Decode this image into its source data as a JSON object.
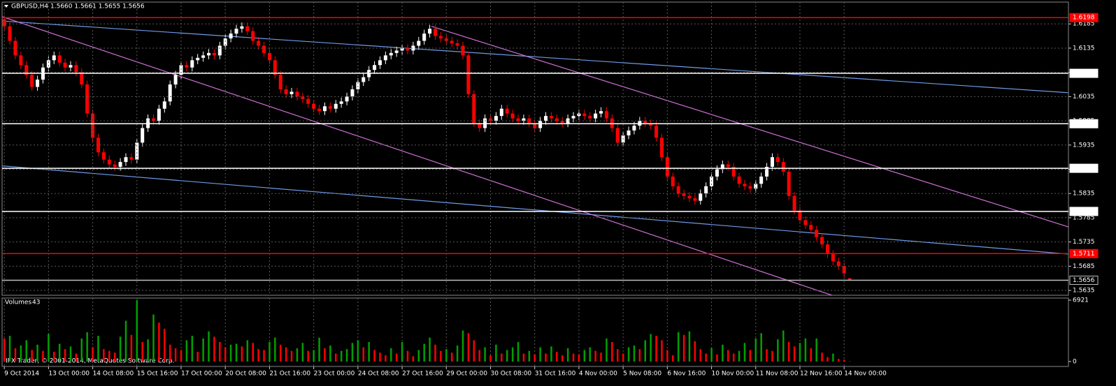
{
  "chart_data": {
    "type": "candlestick",
    "title": "GBPUSD,H4  1.5660 1.5661 1.5655 1.5656",
    "footer": "IFX Trader, © 2001-2014, MetaQuotes Software Corp.",
    "up_color": "#ffffff",
    "down_color": "#ff0000",
    "grid": true,
    "xlim": [
      -0.4,
      192.6
    ],
    "ylim": [
      1.5625,
      1.623
    ],
    "yticks": [
      1.5635,
      1.5685,
      1.5735,
      1.5785,
      1.5835,
      1.5885,
      1.5935,
      1.5985,
      1.6035,
      1.6085,
      1.6135,
      1.6185
    ],
    "xticks": [
      {
        "value": 0,
        "label": "9 Oct 2014"
      },
      {
        "value": 8,
        "label": "13 Oct 00:00"
      },
      {
        "value": 16,
        "label": "14 Oct 08:00"
      },
      {
        "value": 24,
        "label": "15 Oct 16:00"
      },
      {
        "value": 32,
        "label": "17 Oct 00:00"
      },
      {
        "value": 40,
        "label": "20 Oct 08:00"
      },
      {
        "value": 48,
        "label": "21 Oct 16:00"
      },
      {
        "value": 56,
        "label": "23 Oct 00:00"
      },
      {
        "value": 64,
        "label": "24 Oct 08:00"
      },
      {
        "value": 72,
        "label": "27 Oct 16:00"
      },
      {
        "value": 80,
        "label": "29 Oct 00:00"
      },
      {
        "value": 88,
        "label": "30 Oct 08:00"
      },
      {
        "value": 96,
        "label": "31 Oct 16:00"
      },
      {
        "value": 104,
        "label": "4 Nov 00:00"
      },
      {
        "value": 112,
        "label": "5 Nov 08:00"
      },
      {
        "value": 120,
        "label": "6 Nov 16:00"
      },
      {
        "value": 128,
        "label": "10 Nov 00:00"
      },
      {
        "value": 136,
        "label": "11 Nov 08:00"
      },
      {
        "value": 144,
        "label": "12 Nov 16:00"
      },
      {
        "value": 152,
        "label": "14 Nov 00:00"
      }
    ],
    "candles": [
      [
        1.6195,
        1.6203,
        1.6172,
        1.618
      ],
      [
        1.618,
        1.6188,
        1.6142,
        1.615
      ],
      [
        1.615,
        1.6158,
        1.6112,
        1.612
      ],
      [
        1.612,
        1.6128,
        1.6092,
        1.61
      ],
      [
        1.61,
        1.6108,
        1.6072,
        1.608
      ],
      [
        1.608,
        1.6088,
        1.6047,
        1.6055
      ],
      [
        1.6055,
        1.6078,
        1.6047,
        1.607
      ],
      [
        1.607,
        1.6103,
        1.6062,
        1.6095
      ],
      [
        1.6095,
        1.6118,
        1.6087,
        1.611
      ],
      [
        1.611,
        1.6128,
        1.6102,
        1.612
      ],
      [
        1.612,
        1.6128,
        1.6097,
        1.6105
      ],
      [
        1.6105,
        1.6113,
        1.6087,
        1.6095
      ],
      [
        1.6095,
        1.6108,
        1.6087,
        1.61
      ],
      [
        1.61,
        1.6108,
        1.6077,
        1.6085
      ],
      [
        1.6085,
        1.6093,
        1.6052,
        1.606
      ],
      [
        1.606,
        1.6068,
        1.5992,
        1.6
      ],
      [
        1.6,
        1.6008,
        1.5942,
        1.595
      ],
      [
        1.595,
        1.5958,
        1.5912,
        1.592
      ],
      [
        1.592,
        1.5928,
        1.5897,
        1.5905
      ],
      [
        1.5905,
        1.5913,
        1.5887,
        1.5895
      ],
      [
        1.5895,
        1.5903,
        1.5882,
        1.589
      ],
      [
        1.589,
        1.5908,
        1.5882,
        1.59
      ],
      [
        1.59,
        1.5918,
        1.5892,
        1.591
      ],
      [
        1.591,
        1.5918,
        1.5897,
        1.5905
      ],
      [
        1.5905,
        1.5948,
        1.5897,
        1.594
      ],
      [
        1.594,
        1.5978,
        1.5932,
        1.597
      ],
      [
        1.597,
        1.5998,
        1.5962,
        1.599
      ],
      [
        1.599,
        1.5998,
        1.5977,
        1.5985
      ],
      [
        1.5985,
        1.6018,
        1.5977,
        1.601
      ],
      [
        1.601,
        1.6033,
        1.6002,
        1.6025
      ],
      [
        1.6025,
        1.6068,
        1.6017,
        1.606
      ],
      [
        1.606,
        1.6088,
        1.6052,
        1.608
      ],
      [
        1.608,
        1.6108,
        1.6072,
        1.61
      ],
      [
        1.61,
        1.6108,
        1.6087,
        1.6095
      ],
      [
        1.6095,
        1.6118,
        1.6087,
        1.611
      ],
      [
        1.611,
        1.6123,
        1.6102,
        1.6115
      ],
      [
        1.6115,
        1.6128,
        1.6107,
        1.612
      ],
      [
        1.612,
        1.6133,
        1.6112,
        1.6125
      ],
      [
        1.6125,
        1.6133,
        1.6112,
        1.612
      ],
      [
        1.612,
        1.6148,
        1.6112,
        1.614
      ],
      [
        1.614,
        1.6163,
        1.6132,
        1.6155
      ],
      [
        1.6155,
        1.6173,
        1.6147,
        1.6165
      ],
      [
        1.6165,
        1.6183,
        1.6157,
        1.6175
      ],
      [
        1.6175,
        1.6188,
        1.6167,
        1.618
      ],
      [
        1.618,
        1.6188,
        1.6162,
        1.617
      ],
      [
        1.617,
        1.6178,
        1.6142,
        1.615
      ],
      [
        1.615,
        1.6158,
        1.6132,
        1.614
      ],
      [
        1.614,
        1.6148,
        1.6117,
        1.6125
      ],
      [
        1.6125,
        1.6133,
        1.6102,
        1.611
      ],
      [
        1.611,
        1.6118,
        1.6072,
        1.608
      ],
      [
        1.608,
        1.6088,
        1.6042,
        1.605
      ],
      [
        1.605,
        1.6058,
        1.6032,
        1.604
      ],
      [
        1.604,
        1.6053,
        1.6032,
        1.6045
      ],
      [
        1.6045,
        1.6053,
        1.6027,
        1.6035
      ],
      [
        1.6035,
        1.6043,
        1.6022,
        1.603
      ],
      [
        1.603,
        1.6038,
        1.6012,
        1.602
      ],
      [
        1.602,
        1.6028,
        1.6002,
        1.601
      ],
      [
        1.601,
        1.6018,
        1.5997,
        1.6005
      ],
      [
        1.6005,
        1.6023,
        1.5997,
        1.6015
      ],
      [
        1.6015,
        1.6023,
        1.6002,
        1.601
      ],
      [
        1.601,
        1.6028,
        1.6002,
        1.602
      ],
      [
        1.602,
        1.6033,
        1.6012,
        1.6025
      ],
      [
        1.6025,
        1.6043,
        1.6017,
        1.6035
      ],
      [
        1.6035,
        1.6058,
        1.6027,
        1.605
      ],
      [
        1.605,
        1.6073,
        1.6042,
        1.6065
      ],
      [
        1.6065,
        1.6083,
        1.6057,
        1.6075
      ],
      [
        1.6075,
        1.6098,
        1.6067,
        1.609
      ],
      [
        1.609,
        1.6108,
        1.6082,
        1.61
      ],
      [
        1.61,
        1.6118,
        1.6092,
        1.611
      ],
      [
        1.611,
        1.6128,
        1.6102,
        1.612
      ],
      [
        1.612,
        1.6133,
        1.6112,
        1.6125
      ],
      [
        1.6125,
        1.6138,
        1.6117,
        1.613
      ],
      [
        1.613,
        1.6143,
        1.6122,
        1.6135
      ],
      [
        1.6135,
        1.6143,
        1.6122,
        1.613
      ],
      [
        1.613,
        1.6148,
        1.6122,
        1.614
      ],
      [
        1.614,
        1.6158,
        1.6132,
        1.615
      ],
      [
        1.615,
        1.6173,
        1.6142,
        1.6165
      ],
      [
        1.6165,
        1.6183,
        1.6157,
        1.6175
      ],
      [
        1.6175,
        1.6183,
        1.6152,
        1.616
      ],
      [
        1.616,
        1.6168,
        1.6147,
        1.6155
      ],
      [
        1.6155,
        1.6163,
        1.6142,
        1.615
      ],
      [
        1.615,
        1.6158,
        1.6137,
        1.6145
      ],
      [
        1.6145,
        1.6153,
        1.6132,
        1.614
      ],
      [
        1.614,
        1.6148,
        1.6112,
        1.612
      ],
      [
        1.612,
        1.6128,
        1.6032,
        1.604
      ],
      [
        1.604,
        1.6048,
        1.5972,
        1.598
      ],
      [
        1.598,
        1.5988,
        1.5962,
        1.597
      ],
      [
        1.597,
        1.5998,
        1.5962,
        1.599
      ],
      [
        1.599,
        1.5998,
        1.5977,
        1.5985
      ],
      [
        1.5985,
        1.6003,
        1.5977,
        1.5995
      ],
      [
        1.5995,
        1.6018,
        1.5987,
        1.601
      ],
      [
        1.601,
        1.6018,
        1.5992,
        1.6
      ],
      [
        1.6,
        1.6008,
        1.5982,
        1.599
      ],
      [
        1.599,
        1.5998,
        1.5977,
        1.5985
      ],
      [
        1.5985,
        1.5998,
        1.5977,
        1.599
      ],
      [
        1.599,
        1.5998,
        1.5972,
        1.598
      ],
      [
        1.598,
        1.5988,
        1.5962,
        1.597
      ],
      [
        1.597,
        1.5993,
        1.5962,
        1.5985
      ],
      [
        1.5985,
        1.6003,
        1.5977,
        1.5995
      ],
      [
        1.5995,
        1.6003,
        1.5982,
        1.599
      ],
      [
        1.599,
        1.5998,
        1.5977,
        1.5985
      ],
      [
        1.5985,
        1.5993,
        1.5972,
        1.598
      ],
      [
        1.598,
        1.5998,
        1.5972,
        1.599
      ],
      [
        1.599,
        1.6003,
        1.5982,
        1.5995
      ],
      [
        1.5995,
        1.6008,
        1.5987,
        1.6
      ],
      [
        1.6,
        1.6008,
        1.5987,
        1.5995
      ],
      [
        1.5995,
        1.6003,
        1.5982,
        1.599
      ],
      [
        1.599,
        1.6008,
        1.5982,
        1.6
      ],
      [
        1.6,
        1.6013,
        1.5992,
        1.6005
      ],
      [
        1.6005,
        1.6013,
        1.5982,
        1.599
      ],
      [
        1.599,
        1.5998,
        1.5962,
        1.597
      ],
      [
        1.597,
        1.5978,
        1.5932,
        1.594
      ],
      [
        1.594,
        1.5963,
        1.5932,
        1.5955
      ],
      [
        1.5955,
        1.5973,
        1.5947,
        1.5965
      ],
      [
        1.5965,
        1.5983,
        1.5957,
        1.5975
      ],
      [
        1.5975,
        1.5993,
        1.5967,
        1.5985
      ],
      [
        1.5985,
        1.5993,
        1.5972,
        1.598
      ],
      [
        1.598,
        1.5988,
        1.5967,
        1.5975
      ],
      [
        1.5975,
        1.5983,
        1.5942,
        1.595
      ],
      [
        1.595,
        1.5958,
        1.5902,
        1.591
      ],
      [
        1.591,
        1.5918,
        1.5862,
        1.587
      ],
      [
        1.587,
        1.5878,
        1.5842,
        1.585
      ],
      [
        1.585,
        1.5858,
        1.5827,
        1.5835
      ],
      [
        1.5835,
        1.5843,
        1.5822,
        1.583
      ],
      [
        1.583,
        1.5838,
        1.5817,
        1.5825
      ],
      [
        1.5825,
        1.5833,
        1.5812,
        1.582
      ],
      [
        1.582,
        1.5843,
        1.5812,
        1.5835
      ],
      [
        1.5835,
        1.5858,
        1.5827,
        1.585
      ],
      [
        1.585,
        1.5878,
        1.5842,
        1.587
      ],
      [
        1.587,
        1.5893,
        1.5862,
        1.5885
      ],
      [
        1.5885,
        1.5903,
        1.5877,
        1.5895
      ],
      [
        1.5895,
        1.5903,
        1.5882,
        1.589
      ],
      [
        1.589,
        1.5898,
        1.5862,
        1.587
      ],
      [
        1.587,
        1.5878,
        1.5847,
        1.5855
      ],
      [
        1.5855,
        1.5863,
        1.5842,
        1.585
      ],
      [
        1.585,
        1.5858,
        1.5837,
        1.5845
      ],
      [
        1.5845,
        1.5863,
        1.5837,
        1.5855
      ],
      [
        1.5855,
        1.5878,
        1.5847,
        1.587
      ],
      [
        1.587,
        1.5898,
        1.5862,
        1.589
      ],
      [
        1.589,
        1.5918,
        1.5882,
        1.591
      ],
      [
        1.591,
        1.5918,
        1.5892,
        1.59
      ],
      [
        1.59,
        1.5908,
        1.5872,
        1.588
      ],
      [
        1.588,
        1.5888,
        1.5822,
        1.583
      ],
      [
        1.583,
        1.5838,
        1.5792,
        1.58
      ],
      [
        1.58,
        1.5808,
        1.5772,
        1.578
      ],
      [
        1.578,
        1.5788,
        1.5762,
        1.577
      ],
      [
        1.577,
        1.5778,
        1.5752,
        1.576
      ],
      [
        1.576,
        1.5768,
        1.5737,
        1.5745
      ],
      [
        1.5745,
        1.5753,
        1.5722,
        1.573
      ],
      [
        1.573,
        1.5738,
        1.5702,
        1.571
      ],
      [
        1.571,
        1.5718,
        1.5687,
        1.5695
      ],
      [
        1.5695,
        1.5703,
        1.5677,
        1.5685
      ],
      [
        1.5685,
        1.5693,
        1.5662,
        1.567
      ],
      [
        1.566,
        1.5661,
        1.5655,
        1.5656
      ]
    ],
    "levels": [
      {
        "value": 1.6198,
        "color": "#ff0000"
      },
      {
        "value": 1.6083,
        "color": "#ffffff"
      },
      {
        "value": 1.5979,
        "color": "#ffffff"
      },
      {
        "value": 1.5887,
        "color": "#ffffff"
      },
      {
        "value": 1.5798,
        "color": "#ffffff"
      },
      {
        "value": 1.5711,
        "color": "#ff0000"
      },
      {
        "value": 1.5656,
        "color": "#c0c0c0"
      }
    ],
    "trendlines": [
      {
        "color": "#6f9be8",
        "x": [
          -0.4,
          192.6
        ],
        "y": [
          1.6191,
          1.6043
        ]
      },
      {
        "color": "#6f9be8",
        "x": [
          -0.4,
          192.6
        ],
        "y": [
          1.5892,
          1.571
        ]
      },
      {
        "color": "#d070d8",
        "x": [
          -0.4,
          160
        ],
        "y": [
          1.62,
          1.5586
        ]
      },
      {
        "color": "#d070d8",
        "x": [
          77.3,
          192.6
        ],
        "y": [
          1.618,
          1.5766
        ]
      }
    ],
    "volume": {
      "label": "Volumes",
      "up_color": "#00a000",
      "down_color": "#ff0000",
      "ylim": [
        -557,
        7160
      ],
      "yticks": [
        0,
        6921
      ],
      "values": [
        2600,
        2900,
        1500,
        1800,
        2400,
        1300,
        1900,
        1200,
        3100,
        1100,
        2000,
        1400,
        1700,
        900,
        2600,
        3300,
        1600,
        2900,
        1400,
        1200,
        1000,
        2800,
        4600,
        3000,
        6921,
        2200,
        2500,
        5300,
        4400,
        3700,
        1900,
        1500,
        1300,
        2400,
        2900,
        1100,
        2600,
        3400,
        2800,
        2200,
        1600,
        1900,
        2000,
        1700,
        2400,
        2100,
        1400,
        1300,
        2200,
        2700,
        1900,
        1600,
        1200,
        1500,
        2100,
        1200,
        1300,
        2700,
        1500,
        1800,
        900,
        1200,
        1400,
        2100,
        2400,
        1600,
        2200,
        1300,
        1000,
        700,
        1500,
        900,
        2200,
        1200,
        600,
        1300,
        2000,
        2700,
        1900,
        1200,
        1400,
        1000,
        1800,
        3500,
        3200,
        2400,
        1300,
        1600,
        700,
        1900,
        900,
        1300,
        1600,
        2200,
        900,
        1200,
        800,
        1600,
        900,
        1700,
        1100,
        700,
        1500,
        900,
        800,
        1300,
        1600,
        1200,
        1000,
        2600,
        2200,
        1400,
        900,
        1600,
        1800,
        1400,
        2400,
        3100,
        2900,
        2400,
        1300,
        700,
        3300,
        3000,
        3400,
        2300,
        1400,
        900,
        1500,
        800,
        1900,
        1300,
        900,
        1200,
        2100,
        1300,
        2600,
        3200,
        1400,
        1200,
        2500,
        3500,
        2200,
        1700,
        2100,
        2600,
        1500,
        2600,
        1000,
        500,
        900,
        300,
        200,
        43
      ]
    }
  }
}
